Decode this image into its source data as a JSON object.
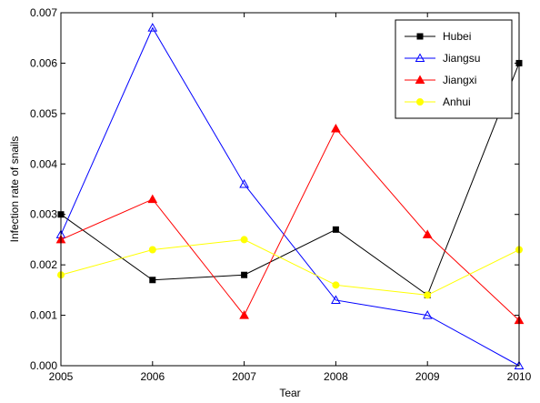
{
  "chart_data": {
    "type": "line",
    "x": [
      2005,
      2006,
      2007,
      2008,
      2009,
      2010
    ],
    "xlabel": "Tear",
    "ylabel": "Infection rate of snails",
    "xlim": [
      2005,
      2010
    ],
    "ylim": [
      0,
      0.007
    ],
    "x_ticks": [
      "2005",
      "2006",
      "2007",
      "2008",
      "2009",
      "2010"
    ],
    "y_ticks": [
      "0.000",
      "0.001",
      "0.002",
      "0.003",
      "0.004",
      "0.005",
      "0.006",
      "0.007"
    ],
    "grid": false,
    "legend_position": "top-right",
    "series": [
      {
        "name": "Hubei",
        "color": "#000000",
        "marker": "filled-square",
        "values": [
          0.003,
          0.0017,
          0.0018,
          0.0027,
          0.0014,
          0.006
        ]
      },
      {
        "name": "Jiangsu",
        "color": "#0000ff",
        "marker": "open-triangle",
        "values": [
          0.0026,
          0.0067,
          0.0036,
          0.0013,
          0.001,
          0.0
        ]
      },
      {
        "name": "Jiangxi",
        "color": "#ff0000",
        "marker": "filled-triangle",
        "values": [
          0.0025,
          0.0033,
          0.001,
          0.0047,
          0.0026,
          0.0009
        ]
      },
      {
        "name": "Anhui",
        "color": "#ffff00",
        "marker": "filled-circle",
        "values": [
          0.0018,
          0.0023,
          0.0025,
          0.0016,
          0.0014,
          0.0023
        ]
      }
    ]
  }
}
